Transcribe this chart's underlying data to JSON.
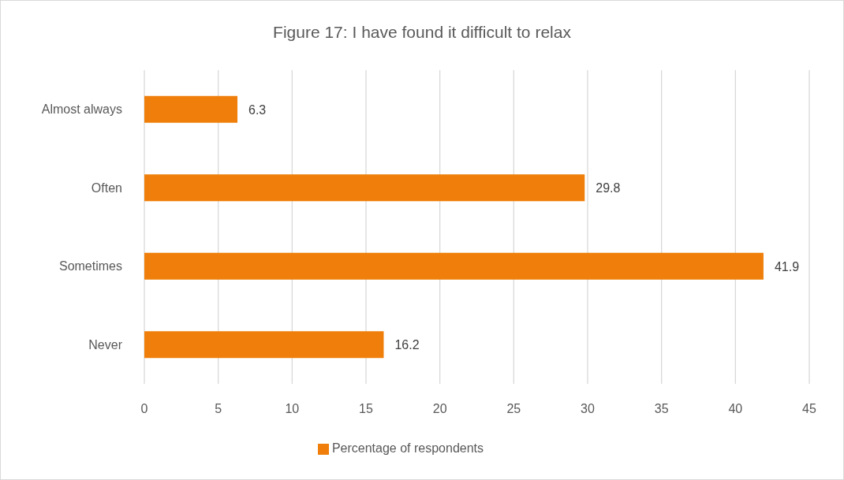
{
  "chart_data": {
    "type": "bar",
    "title": "Figure 17: I have found it difficult to relax",
    "orientation": "horizontal",
    "categories": [
      "Almost always",
      "Often",
      "Sometimes",
      "Never"
    ],
    "series": [
      {
        "name": "Percentage of respondents",
        "color": "#ef7f0a",
        "values": [
          6.3,
          29.8,
          41.9,
          16.2
        ]
      }
    ],
    "xlim": [
      0,
      45
    ],
    "xticks": [
      0,
      5,
      10,
      15,
      20,
      25,
      30,
      35,
      40,
      45
    ],
    "grid": "x",
    "legend": "bottom",
    "data_labels": true
  }
}
